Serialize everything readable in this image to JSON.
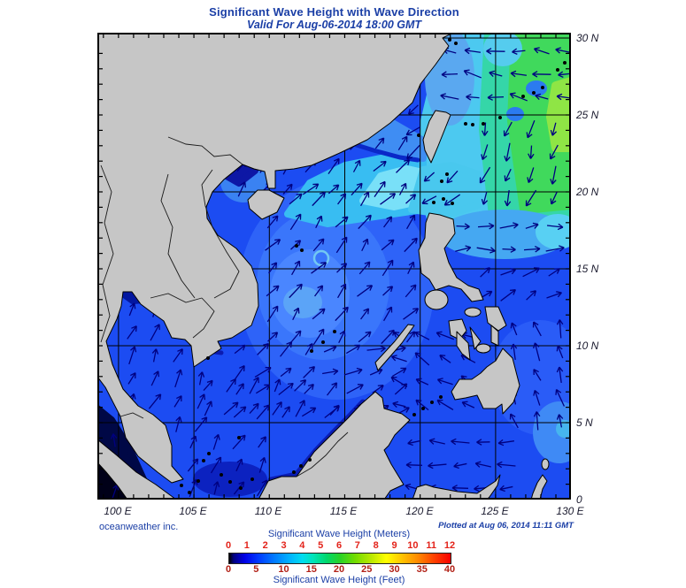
{
  "title": "Significant Wave Height with Wave Direction",
  "subtitle": "Valid For Aug-06-2014 18:00 GMT",
  "map": {
    "lat_labels": [
      "30 N",
      "25 N",
      "20 N",
      "15 N",
      "10 N",
      "5 N",
      "0"
    ],
    "lon_labels": [
      "100 E",
      "105 E",
      "110 E",
      "115 E",
      "120 E",
      "125 E",
      "130 E"
    ]
  },
  "footer": {
    "credit": "oceanweather inc.",
    "plotted_at": "Plotted at Aug 06, 2014 11:11 GMT"
  },
  "legend": {
    "meters_title": "Significant Wave Height (Meters)",
    "feet_title": "Significant Wave Height (Feet)",
    "meters_ticks": [
      "0",
      "1",
      "2",
      "3",
      "4",
      "5",
      "6",
      "7",
      "8",
      "9",
      "10",
      "11",
      "12"
    ],
    "feet_ticks": [
      "0",
      "5",
      "10",
      "15",
      "20",
      "25",
      "30",
      "35",
      "40"
    ]
  },
  "colors": {
    "title_text": "#1b3fa6",
    "axis_label_text": "#1a1a2e",
    "meters_tick_text": "#e3231a",
    "feet_tick_text": "#b22016",
    "ocean_base": "#1c4cf2",
    "land": "#c6c6c6",
    "coast_line": "#000000",
    "arrow": "#000080",
    "graticule": "#000000"
  }
}
